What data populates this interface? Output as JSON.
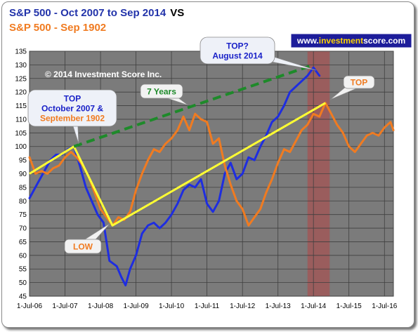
{
  "header": {
    "line1": "S&P 500  - Oct 2007 to Sep 2014",
    "vs": "VS",
    "line2": "S&P 500  - Sep 1902"
  },
  "chart_data": {
    "type": "line",
    "ylim": [
      45,
      135
    ],
    "yticks": [
      45,
      50,
      55,
      60,
      65,
      70,
      75,
      80,
      85,
      90,
      95,
      100,
      105,
      110,
      115,
      120,
      125,
      130,
      135
    ],
    "xlim": [
      "2006-07-01",
      "2016-10-01"
    ],
    "xtick_labels": [
      "1-Jul-06",
      "1-Jul-07",
      "1-Jul-08",
      "1-Jul-09",
      "1-Jul-10",
      "1-Jul-11",
      "1-Jul-12",
      "1-Jul-13",
      "1-Jul-14",
      "1-Jul-15",
      "1-Jul-16"
    ],
    "grid": true,
    "colors": {
      "blue": "#1e2de0",
      "orange": "#f07b21",
      "yellow": "#ffff33",
      "green": "#1e8a2a",
      "plot_bg": "#7b7b7b",
      "highlight": "#a05858"
    },
    "highlight_band": [
      "2014-05-01",
      "2014-12-15"
    ],
    "series": [
      {
        "color_key": "blue",
        "points": [
          [
            "2006-07-01",
            81
          ],
          [
            "2006-09-15",
            86
          ],
          [
            "2006-12-01",
            91
          ],
          [
            "2007-02-01",
            95
          ],
          [
            "2007-04-01",
            97
          ],
          [
            "2007-06-01",
            97
          ],
          [
            "2007-08-01",
            99
          ],
          [
            "2007-10-01",
            100
          ],
          [
            "2007-12-01",
            93
          ],
          [
            "2008-02-01",
            85
          ],
          [
            "2008-04-01",
            80
          ],
          [
            "2008-06-01",
            75
          ],
          [
            "2008-08-01",
            72
          ],
          [
            "2008-10-01",
            58
          ],
          [
            "2008-12-15",
            56
          ],
          [
            "2009-02-01",
            52
          ],
          [
            "2009-03-15",
            49
          ],
          [
            "2009-05-01",
            55
          ],
          [
            "2009-07-01",
            60
          ],
          [
            "2009-09-01",
            68
          ],
          [
            "2009-11-01",
            71
          ],
          [
            "2010-01-01",
            72
          ],
          [
            "2010-03-01",
            70
          ],
          [
            "2010-05-01",
            72
          ],
          [
            "2010-07-01",
            75
          ],
          [
            "2010-09-01",
            79
          ],
          [
            "2010-11-01",
            84
          ],
          [
            "2011-01-01",
            86
          ],
          [
            "2011-03-01",
            85
          ],
          [
            "2011-05-01",
            88
          ],
          [
            "2011-07-01",
            79
          ],
          [
            "2011-09-01",
            76
          ],
          [
            "2011-11-01",
            80
          ],
          [
            "2012-01-01",
            90
          ],
          [
            "2012-03-01",
            94
          ],
          [
            "2012-05-01",
            88
          ],
          [
            "2012-07-01",
            90
          ],
          [
            "2012-09-01",
            96
          ],
          [
            "2012-11-01",
            95
          ],
          [
            "2013-01-01",
            100
          ],
          [
            "2013-03-01",
            104
          ],
          [
            "2013-05-01",
            109
          ],
          [
            "2013-07-01",
            111
          ],
          [
            "2013-09-01",
            115
          ],
          [
            "2013-11-01",
            120
          ],
          [
            "2014-01-01",
            122
          ],
          [
            "2014-03-01",
            124
          ],
          [
            "2014-05-01",
            126
          ],
          [
            "2014-07-01",
            129
          ],
          [
            "2014-09-01",
            126
          ]
        ]
      },
      {
        "color_key": "orange",
        "points": [
          [
            "2006-07-01",
            96
          ],
          [
            "2006-09-01",
            90
          ],
          [
            "2006-11-01",
            91
          ],
          [
            "2007-01-01",
            90
          ],
          [
            "2007-03-01",
            92
          ],
          [
            "2007-05-01",
            93
          ],
          [
            "2007-07-01",
            96
          ],
          [
            "2007-09-01",
            98
          ],
          [
            "2007-11-01",
            96
          ],
          [
            "2008-01-01",
            93
          ],
          [
            "2008-03-01",
            89
          ],
          [
            "2008-05-01",
            83
          ],
          [
            "2008-07-01",
            77
          ],
          [
            "2008-09-01",
            74
          ],
          [
            "2008-11-01",
            71
          ],
          [
            "2009-01-01",
            74
          ],
          [
            "2009-03-01",
            73
          ],
          [
            "2009-05-01",
            76
          ],
          [
            "2009-07-01",
            84
          ],
          [
            "2009-09-01",
            90
          ],
          [
            "2009-11-01",
            95
          ],
          [
            "2010-01-01",
            99
          ],
          [
            "2010-03-01",
            98
          ],
          [
            "2010-05-01",
            101
          ],
          [
            "2010-07-01",
            103
          ],
          [
            "2010-09-01",
            106
          ],
          [
            "2010-11-01",
            111
          ],
          [
            "2011-01-01",
            106
          ],
          [
            "2011-03-01",
            112
          ],
          [
            "2011-05-01",
            110
          ],
          [
            "2011-07-01",
            109
          ],
          [
            "2011-09-01",
            101
          ],
          [
            "2011-11-01",
            103
          ],
          [
            "2012-01-01",
            93
          ],
          [
            "2012-03-01",
            86
          ],
          [
            "2012-05-01",
            80
          ],
          [
            "2012-07-01",
            77
          ],
          [
            "2012-09-01",
            71
          ],
          [
            "2012-11-01",
            74
          ],
          [
            "2013-01-01",
            77
          ],
          [
            "2013-03-01",
            83
          ],
          [
            "2013-05-01",
            88
          ],
          [
            "2013-07-01",
            94
          ],
          [
            "2013-09-01",
            99
          ],
          [
            "2013-11-01",
            98
          ],
          [
            "2014-01-01",
            102
          ],
          [
            "2014-03-01",
            106
          ],
          [
            "2014-05-01",
            108
          ],
          [
            "2014-07-01",
            112
          ],
          [
            "2014-09-01",
            111
          ],
          [
            "2014-11-01",
            116
          ],
          [
            "2015-01-01",
            112
          ],
          [
            "2015-03-01",
            108
          ],
          [
            "2015-05-01",
            105
          ],
          [
            "2015-07-01",
            100
          ],
          [
            "2015-09-01",
            98
          ],
          [
            "2015-11-01",
            101
          ],
          [
            "2016-01-01",
            104
          ],
          [
            "2016-03-01",
            105
          ],
          [
            "2016-05-01",
            104
          ],
          [
            "2016-07-01",
            107
          ],
          [
            "2016-09-01",
            109
          ],
          [
            "2016-10-01",
            106
          ]
        ]
      }
    ],
    "trendlines": [
      {
        "color_key": "yellow",
        "style": "solid",
        "points": [
          [
            "2006-07-01",
            90
          ],
          [
            "2007-10-01",
            100
          ],
          [
            "2008-11-01",
            71
          ],
          [
            "2014-11-01",
            116
          ]
        ]
      },
      {
        "color_key": "green",
        "style": "dashed",
        "points": [
          [
            "2007-10-01",
            100
          ],
          [
            "2014-07-01",
            130
          ]
        ]
      }
    ],
    "annotations": [
      {
        "lines": [
          "TOP",
          "October 2007 &",
          "September 1902"
        ],
        "line_colors": [
          "blue",
          "blue",
          "orange"
        ]
      },
      {
        "lines": [
          "TOP?",
          "August 2014"
        ],
        "line_colors": [
          "blue",
          "blue"
        ]
      },
      {
        "lines": [
          "7 Years"
        ],
        "line_colors": [
          "green"
        ]
      },
      {
        "lines": [
          "TOP"
        ],
        "line_colors": [
          "orange"
        ]
      },
      {
        "lines": [
          "LOW"
        ],
        "line_colors": [
          "orange"
        ]
      }
    ],
    "watermark": "© 2014 Investment Score Inc.",
    "brand": {
      "prefix": "www.",
      "name": "investment",
      "suffix": "score.com"
    }
  }
}
